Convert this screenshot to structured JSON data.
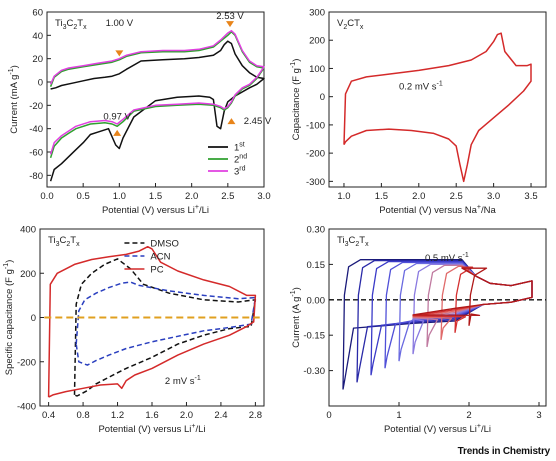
{
  "watermark": "Trends in Chemistry",
  "chart_data": [
    {
      "type": "line",
      "panel": "top-left",
      "material": "Ti3C2Tx",
      "xlabel": "Potential (V) versus Li+/Li",
      "ylabel": "Current (mA g-1)",
      "xlim": [
        0,
        3.0
      ],
      "ylim": [
        -90,
        60
      ],
      "xticks": [
        "0.0",
        "0.5",
        "1.0",
        "1.5",
        "2.0",
        "2.5",
        "3.0"
      ],
      "yticks": [
        "60",
        "40",
        "20",
        "0",
        "-20",
        "-40",
        "-60",
        "-80"
      ],
      "annotations": [
        "1.00 V",
        "2.53 V",
        "0.97 V",
        "2.45 V"
      ],
      "legend": [
        "1st",
        "2nd",
        "3rd"
      ],
      "series": [
        {
          "name": "1st",
          "color": "#111111",
          "x": [
            0.05,
            0.12,
            0.2,
            0.35,
            0.5,
            0.65,
            0.8,
            0.9,
            1.0,
            1.1,
            1.3,
            1.6,
            1.9,
            2.1,
            2.3,
            2.4,
            2.45,
            2.5,
            2.55,
            2.6,
            2.7,
            2.8,
            2.9,
            3.0,
            2.9,
            2.8,
            2.6,
            2.5,
            2.45,
            2.4,
            2.35,
            2.3,
            2.25,
            2.1,
            1.8,
            1.5,
            1.2,
            1.05,
            1.0,
            0.95,
            0.85,
            0.7,
            0.6,
            0.5,
            0.4,
            0.3,
            0.2,
            0.1,
            0.05
          ],
          "y": [
            -6,
            -5,
            -3,
            -1,
            1,
            3,
            4,
            5,
            7,
            11,
            18,
            19,
            20,
            21,
            23,
            27,
            32,
            35,
            33,
            24,
            14,
            8,
            4,
            3,
            -2,
            -5,
            -12,
            -17,
            -25,
            -40,
            -38,
            -15,
            -13,
            -12,
            -13,
            -16,
            -30,
            -48,
            -57,
            -54,
            -40,
            -43,
            -45,
            -52,
            -58,
            -64,
            -70,
            -75,
            -85
          ]
        },
        {
          "name": "2nd",
          "color": "#2fa02f",
          "x": [
            0.05,
            0.1,
            0.2,
            0.3,
            0.5,
            0.7,
            0.9,
            1.0,
            1.1,
            1.3,
            1.6,
            1.9,
            2.1,
            2.3,
            2.4,
            2.5,
            2.55,
            2.6,
            2.7,
            2.8,
            2.9,
            3.0,
            2.9,
            2.8,
            2.7,
            2.6,
            2.55,
            2.5,
            2.45,
            2.4,
            2.3,
            2.1,
            1.8,
            1.5,
            1.2,
            1.05,
            0.97,
            0.9,
            0.8,
            0.6,
            0.4,
            0.3,
            0.2,
            0.1,
            0.05
          ],
          "y": [
            -4,
            4,
            9,
            11,
            13,
            15,
            17,
            19,
            22,
            25,
            26,
            26,
            27,
            30,
            35,
            40,
            43,
            40,
            26,
            17,
            13,
            12,
            3,
            -3,
            -6,
            -12,
            -18,
            -22,
            -24,
            -22,
            -20,
            -19,
            -20,
            -21,
            -25,
            -34,
            -38,
            -36,
            -35,
            -36,
            -40,
            -44,
            -48,
            -55,
            -65
          ]
        },
        {
          "name": "3rd",
          "color": "#e040e0",
          "x": [
            0.05,
            0.1,
            0.2,
            0.3,
            0.5,
            0.7,
            0.9,
            1.0,
            1.1,
            1.3,
            1.6,
            1.9,
            2.1,
            2.3,
            2.4,
            2.5,
            2.55,
            2.6,
            2.7,
            2.8,
            2.9,
            3.0,
            2.9,
            2.8,
            2.7,
            2.6,
            2.55,
            2.5,
            2.45,
            2.4,
            2.3,
            2.1,
            1.8,
            1.5,
            1.2,
            1.05,
            0.97,
            0.9,
            0.8,
            0.6,
            0.4,
            0.3,
            0.2,
            0.1,
            0.05
          ],
          "y": [
            -2,
            5,
            10,
            12,
            14,
            16,
            18,
            20,
            23,
            26,
            27,
            27,
            28,
            31,
            36,
            42,
            44,
            41,
            27,
            18,
            14,
            13,
            4,
            -2,
            -5,
            -11,
            -17,
            -21,
            -23,
            -21,
            -19,
            -18,
            -19,
            -20,
            -24,
            -32,
            -36,
            -34,
            -33,
            -34,
            -38,
            -42,
            -46,
            -52,
            -62
          ]
        }
      ]
    },
    {
      "type": "line",
      "panel": "top-right",
      "material": "V2CTx",
      "xlabel": "Potential (V) versus Na+/Na",
      "ylabel": "Capacitance (F g-1)",
      "xlim": [
        0.8,
        3.7
      ],
      "ylim": [
        -320,
        300
      ],
      "xticks": [
        "1.0",
        "1.5",
        "2.0",
        "2.5",
        "3.0",
        "3.5"
      ],
      "yticks": [
        "300",
        "200",
        "100",
        "0",
        "-100",
        "-200",
        "-300"
      ],
      "annotations": [
        "0.2 mV s-1"
      ],
      "series": [
        {
          "name": "",
          "color": "#d42a2a",
          "x": [
            1.0,
            1.02,
            1.1,
            1.3,
            1.6,
            2.0,
            2.4,
            2.7,
            2.9,
            3.0,
            3.05,
            3.1,
            3.15,
            3.3,
            3.45,
            3.5,
            3.5,
            3.4,
            3.2,
            3.0,
            2.8,
            2.7,
            2.65,
            2.6,
            2.55,
            2.5,
            2.4,
            2.2,
            1.9,
            1.6,
            1.3,
            1.1,
            1.02,
            1.0
          ],
          "y": [
            -170,
            10,
            55,
            70,
            80,
            93,
            110,
            130,
            160,
            195,
            220,
            225,
            160,
            110,
            110,
            115,
            55,
            20,
            -30,
            -75,
            -120,
            -170,
            -240,
            -300,
            -240,
            -175,
            -150,
            -130,
            -120,
            -115,
            -120,
            -140,
            -160,
            -170
          ]
        }
      ]
    },
    {
      "type": "line",
      "panel": "bottom-left",
      "material": "Ti3C2Tx",
      "xlabel": "Potential (V) versus Li+/Li",
      "ylabel": "Specific capacitance (F g-1)",
      "xlim": [
        0.3,
        2.9
      ],
      "ylim": [
        -400,
        400
      ],
      "xticks": [
        "0.4",
        "0.8",
        "1.2",
        "1.6",
        "2.0",
        "2.4",
        "2.8"
      ],
      "yticks": [
        "400",
        "200",
        "0",
        "-200",
        "-400"
      ],
      "annotations": [
        "2 mV s-1"
      ],
      "legend": [
        "DMSO",
        "ACN",
        "PC"
      ],
      "series": [
        {
          "name": "DMSO",
          "color": "#111111",
          "dash": true,
          "x": [
            0.7,
            0.72,
            0.78,
            0.9,
            1.05,
            1.2,
            1.35,
            1.5,
            1.8,
            2.2,
            2.6,
            2.8,
            2.75,
            2.5,
            2.2,
            1.9,
            1.6,
            1.3,
            1.1,
            0.95,
            0.85,
            0.78,
            0.73,
            0.7
          ],
          "y": [
            -350,
            60,
            150,
            200,
            240,
            265,
            220,
            150,
            110,
            80,
            70,
            80,
            -40,
            -50,
            -80,
            -120,
            -180,
            -230,
            -270,
            -300,
            -330,
            -345,
            -355,
            -350
          ]
        },
        {
          "name": "ACN",
          "color": "#2a3fbf",
          "dash": true,
          "x": [
            0.72,
            0.75,
            0.82,
            0.95,
            1.1,
            1.25,
            1.35,
            1.45,
            1.8,
            2.2,
            2.6,
            2.8,
            2.75,
            2.5,
            2.2,
            1.9,
            1.6,
            1.3,
            1.1,
            0.95,
            0.85,
            0.75,
            0.72
          ],
          "y": [
            -120,
            30,
            80,
            110,
            135,
            155,
            160,
            145,
            120,
            100,
            85,
            90,
            -30,
            -45,
            -60,
            -85,
            -110,
            -140,
            -170,
            -195,
            -215,
            -200,
            -120
          ]
        },
        {
          "name": "PC",
          "color": "#d42a2a",
          "dash": false,
          "x": [
            0.4,
            0.42,
            0.5,
            0.7,
            0.9,
            1.1,
            1.3,
            1.45,
            1.55,
            1.6,
            1.7,
            1.9,
            2.2,
            2.5,
            2.7,
            2.8,
            2.78,
            2.7,
            2.5,
            2.2,
            1.9,
            1.6,
            1.4,
            1.3,
            1.25,
            1.2,
            1.0,
            0.8,
            0.6,
            0.45,
            0.4
          ],
          "y": [
            -360,
            150,
            200,
            240,
            262,
            275,
            285,
            300,
            320,
            310,
            250,
            210,
            170,
            140,
            100,
            100,
            -20,
            -40,
            -80,
            -120,
            -170,
            -230,
            -260,
            -285,
            -320,
            -300,
            -305,
            -320,
            -335,
            -350,
            -360
          ]
        },
        {
          "name": "",
          "color": "#e0a020",
          "dash": true,
          "x": [
            0.35,
            2.85
          ],
          "y": [
            0,
            0
          ]
        }
      ]
    },
    {
      "type": "line",
      "panel": "bottom-right",
      "material": "Ti3C2Tx",
      "xlabel": "Potential (V) versus Li+/Li",
      "ylabel": "Current (A g-1)",
      "xlim": [
        0,
        3.1
      ],
      "ylim": [
        -0.45,
        0.3
      ],
      "xticks": [
        "0",
        "1",
        "2",
        "3"
      ],
      "yticks": [
        "0.30",
        "0.15",
        "0.00",
        "-0.15",
        "-0.30"
      ],
      "annotations": [
        "0.5 mV s-1"
      ],
      "series": [
        {
          "name": "",
          "color": "#1a1a7a",
          "lower_limit": 0.2
        },
        {
          "name": "",
          "color": "#2a2aa8",
          "lower_limit": 0.4
        },
        {
          "name": "",
          "color": "#3a3ac8",
          "lower_limit": 0.6
        },
        {
          "name": "",
          "color": "#5050d8",
          "lower_limit": 0.8
        },
        {
          "name": "",
          "color": "#6a6ae0",
          "lower_limit": 1.0
        },
        {
          "name": "",
          "color": "#8a7ae0",
          "lower_limit": 1.2
        },
        {
          "name": "",
          "color": "#c07aa0",
          "lower_limit": 1.4
        },
        {
          "name": "",
          "color": "#e06a6a",
          "lower_limit": 1.6
        },
        {
          "name": "",
          "color": "#d43030",
          "lower_limit": 1.8
        },
        {
          "name": "",
          "color": "#b01818",
          "lower_limit": 2.0
        }
      ]
    }
  ]
}
